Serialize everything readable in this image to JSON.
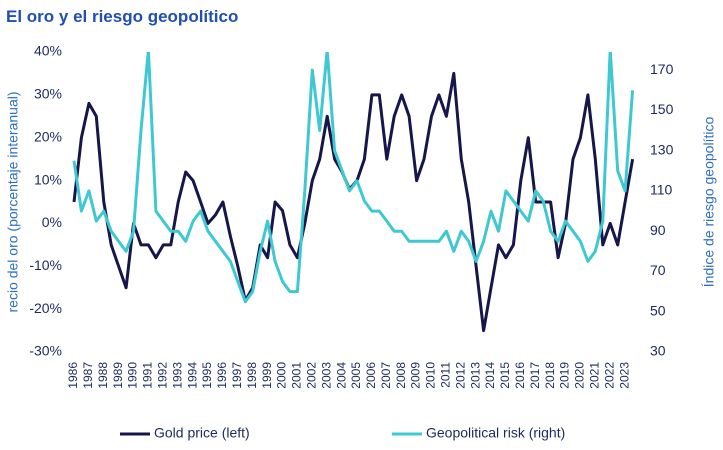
{
  "chart_data": {
    "type": "line",
    "title": "El oro y el riesgo geopolítico",
    "y_label": "recio del oro (porcentaje interanual)",
    "y2_label": "Índice de riesgo geopolítico",
    "x": [
      1986,
      1986.5,
      1987,
      1987.5,
      1988,
      1988.5,
      1989,
      1989.5,
      1990,
      1990.5,
      1991,
      1991.5,
      1992,
      1992.5,
      1993,
      1993.5,
      1994,
      1994.5,
      1995,
      1995.5,
      1996,
      1996.5,
      1997,
      1997.5,
      1998,
      1998.5,
      1999,
      1999.5,
      2000,
      2000.5,
      2001,
      2001.5,
      2002,
      2002.5,
      2003,
      2003.5,
      2004,
      2004.5,
      2005,
      2005.5,
      2006,
      2006.5,
      2007,
      2007.5,
      2008,
      2008.5,
      2009,
      2009.5,
      2010,
      2010.5,
      2011,
      2011.5,
      2012,
      2012.5,
      2013,
      2013.5,
      2014,
      2014.5,
      2015,
      2015.5,
      2016,
      2016.5,
      2017,
      2017.5,
      2018,
      2018.5,
      2019,
      2019.5,
      2020,
      2020.5,
      2021,
      2021.5,
      2022,
      2022.5,
      2023,
      2023.5
    ],
    "xlim": [
      1985.6,
      2024
    ],
    "xticks": [
      1986,
      1987,
      1988,
      1989,
      1990,
      1991,
      1992,
      1993,
      1994,
      1995,
      1996,
      1997,
      1998,
      1999,
      2000,
      2001,
      2002,
      2003,
      2004,
      2005,
      2006,
      2007,
      2008,
      2009,
      2010,
      2011,
      2012,
      2013,
      2014,
      2015,
      2016,
      2017,
      2018,
      2019,
      2020,
      2021,
      2022,
      2023
    ],
    "ylim": [
      -30,
      40
    ],
    "yticks": [
      {
        "value": -30,
        "label": "-30%"
      },
      {
        "value": -20,
        "label": "-20%"
      },
      {
        "value": -10,
        "label": "-10%"
      },
      {
        "value": 0,
        "label": "0%"
      },
      {
        "value": 10,
        "label": "10%"
      },
      {
        "value": 20,
        "label": "20%"
      },
      {
        "value": 30,
        "label": "30%"
      },
      {
        "value": 40,
        "label": "40%"
      }
    ],
    "y2lim": [
      30,
      179
    ],
    "y2ticks": [
      30,
      50,
      70,
      90,
      110,
      130,
      150,
      170
    ],
    "series": [
      {
        "name": "Gold price (left)",
        "color": "#16164a",
        "values": [
          5,
          20,
          28,
          25,
          5,
          -5,
          -10,
          -15,
          0,
          -5,
          -5,
          -8,
          -5,
          -5,
          5,
          12,
          10,
          5,
          0,
          2,
          5,
          -3,
          -10,
          -18,
          -15,
          -5,
          -8,
          5,
          3,
          -5,
          -8,
          0,
          10,
          15,
          25,
          15,
          12,
          8,
          10,
          15,
          30,
          30,
          15,
          25,
          30,
          25,
          10,
          15,
          25,
          30,
          25,
          35,
          15,
          5,
          -10,
          -25,
          -15,
          -5,
          -8,
          -5,
          10,
          20,
          5,
          5,
          5,
          -8,
          0,
          15,
          20,
          30,
          15,
          -5,
          0,
          -5,
          5,
          15
        ]
      },
      {
        "name": "Geopolitical risk (right)",
        "color": "#3ec9d2",
        "axis": "y2",
        "values": [
          125,
          100,
          110,
          95,
          100,
          90,
          85,
          80,
          90,
          140,
          180,
          100,
          95,
          90,
          90,
          85,
          95,
          100,
          90,
          85,
          80,
          75,
          65,
          55,
          60,
          80,
          95,
          75,
          65,
          60,
          60,
          110,
          170,
          140,
          180,
          130,
          120,
          110,
          115,
          105,
          100,
          100,
          95,
          90,
          90,
          85,
          85,
          85,
          85,
          85,
          90,
          80,
          90,
          85,
          75,
          85,
          100,
          90,
          110,
          105,
          100,
          95,
          110,
          105,
          90,
          85,
          95,
          90,
          85,
          75,
          80,
          95,
          180,
          120,
          110,
          160
        ]
      }
    ]
  }
}
